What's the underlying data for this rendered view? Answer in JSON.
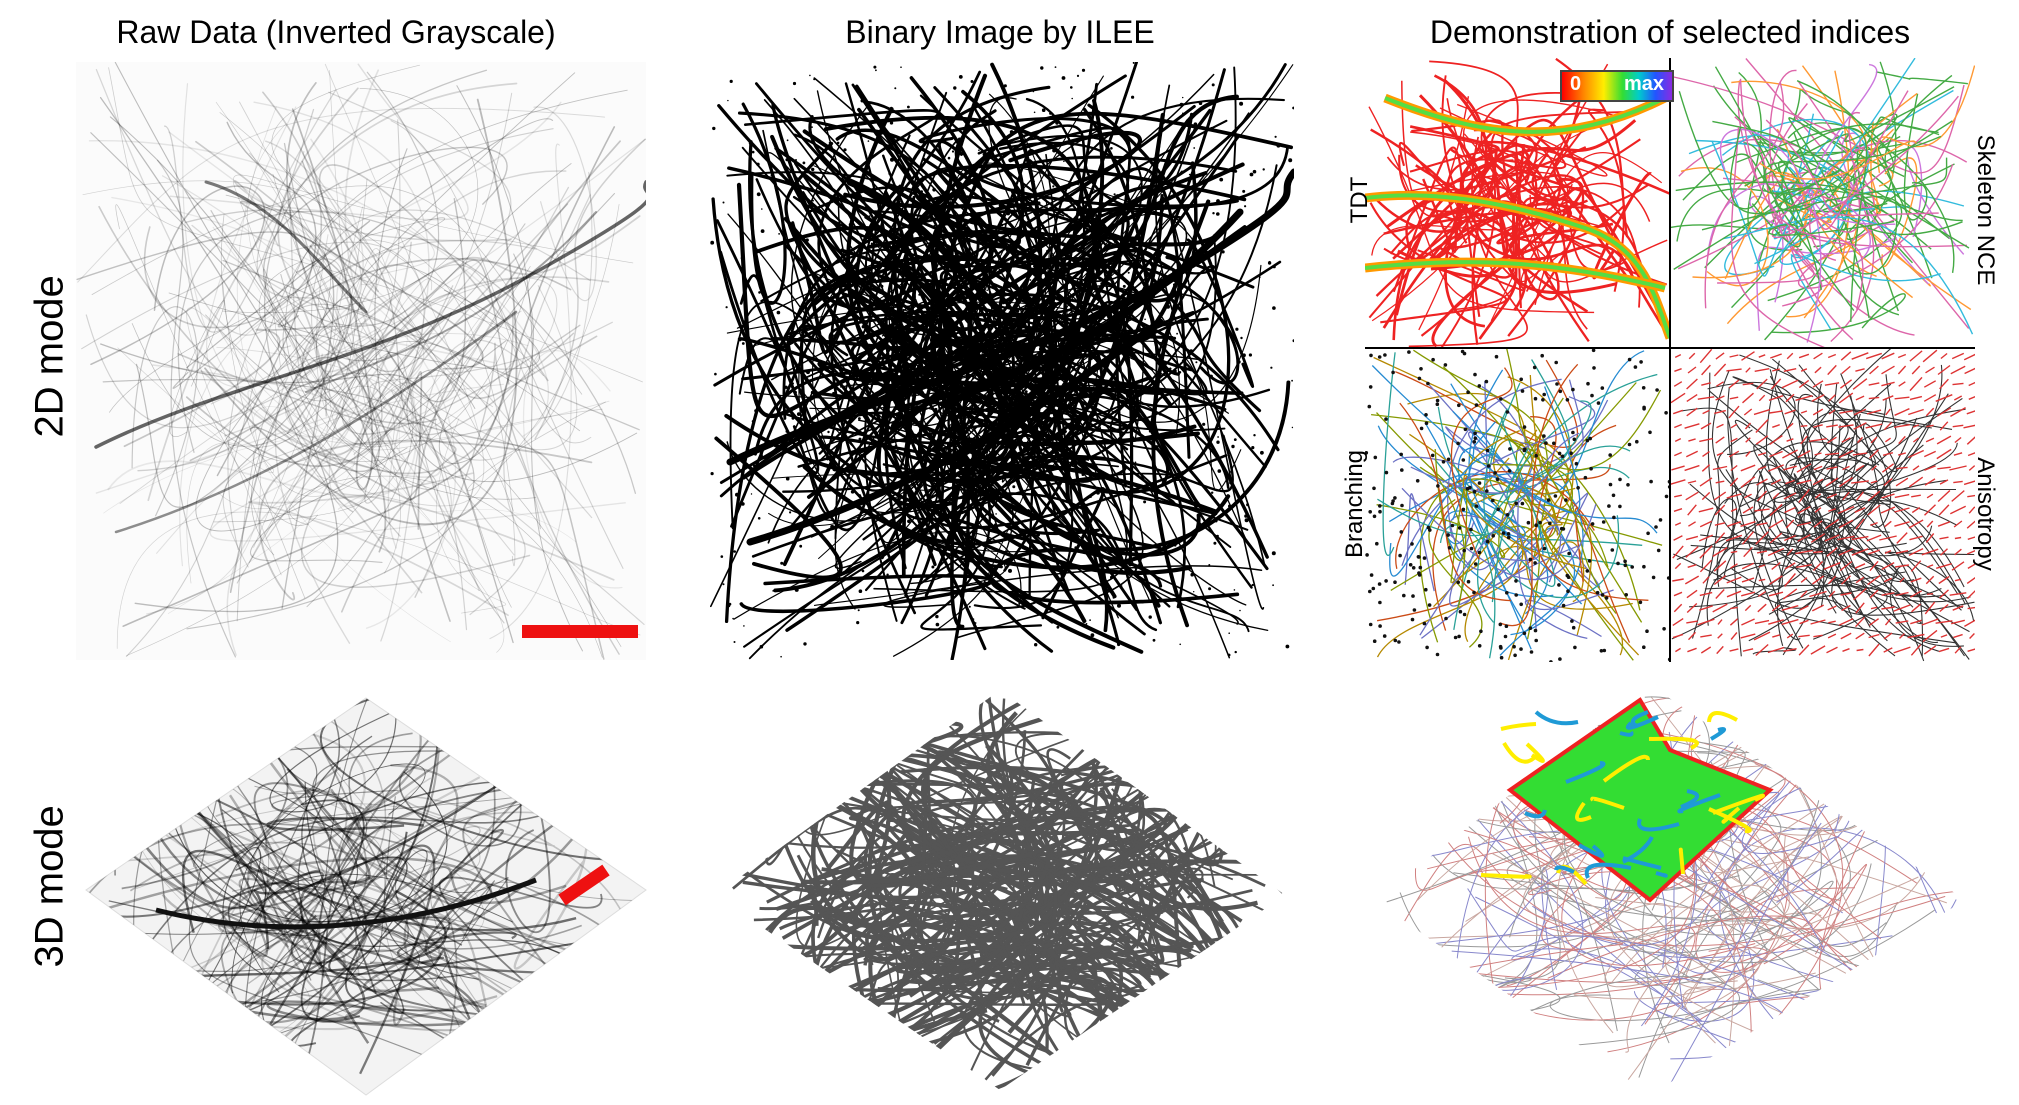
{
  "columns": {
    "raw": "Raw Data (Inverted Grayscale)",
    "binary": "Binary Image by ILEE",
    "demo": "Demonstration of selected indices"
  },
  "rows": {
    "mode2d": "2D mode",
    "mode3d": "3D mode"
  },
  "quadrants": {
    "tdt": "TDT",
    "skeleton": "Skeleton NCE",
    "branching": "Branching",
    "anisotropy": "Anisotropy"
  },
  "colorbar": {
    "min": "0",
    "max": "max"
  },
  "colors": {
    "scale_bar": "#ee1111",
    "tdt": "#ee2222",
    "skeleton": "#44aa44",
    "anisotropy": "#dd3333"
  }
}
